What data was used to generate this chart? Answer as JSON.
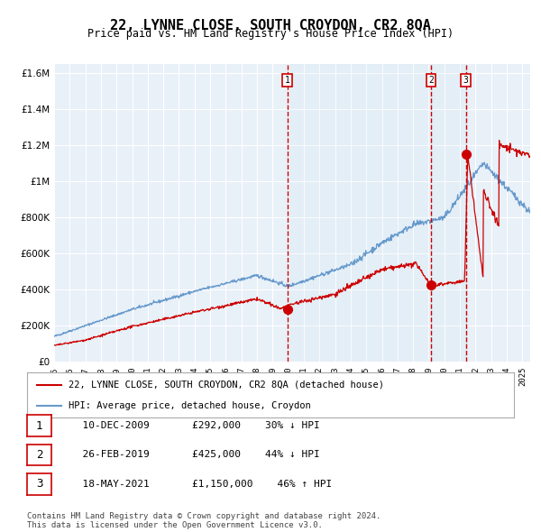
{
  "title": "22, LYNNE CLOSE, SOUTH CROYDON, CR2 8QA",
  "subtitle": "Price paid vs. HM Land Registry's House Price Index (HPI)",
  "ylabel": "",
  "background_color": "#ffffff",
  "plot_bg_color": "#e8f0f8",
  "grid_color": "#ffffff",
  "hpi_color": "#6699cc",
  "price_color": "#cc0000",
  "sale_marker_color": "#cc0000",
  "dashed_line_color": "#cc0000",
  "ylim": [
    0,
    1650000
  ],
  "yticks": [
    0,
    200000,
    400000,
    600000,
    800000,
    1000000,
    1200000,
    1400000,
    1600000
  ],
  "ytick_labels": [
    "£0",
    "£200K",
    "£400K",
    "£600K",
    "£800K",
    "£1M",
    "£1.2M",
    "£1.4M",
    "£1.6M"
  ],
  "sales": [
    {
      "date": "2009-12-10",
      "price": 292000,
      "label": "1",
      "x_year": 2009.94
    },
    {
      "date": "2019-02-26",
      "price": 425000,
      "label": "2",
      "x_year": 2019.15
    },
    {
      "date": "2021-05-18",
      "price": 1150000,
      "label": "3",
      "x_year": 2021.38
    }
  ],
  "table_rows": [
    {
      "num": "1",
      "date": "10-DEC-2009",
      "price": "£292,000",
      "pct": "30% ↓ HPI"
    },
    {
      "num": "2",
      "date": "26-FEB-2019",
      "price": "£425,000",
      "pct": "44% ↓ HPI"
    },
    {
      "num": "3",
      "date": "18-MAY-2021",
      "price": "£1,150,000",
      "pct": "46% ↑ HPI"
    }
  ],
  "legend_entries": [
    "22, LYNNE CLOSE, SOUTH CROYDON, CR2 8QA (detached house)",
    "HPI: Average price, detached house, Croydon"
  ],
  "footer": "Contains HM Land Registry data © Crown copyright and database right 2024.\nThis data is licensed under the Open Government Licence v3.0.",
  "xmin": 1995.0,
  "xmax": 2025.5
}
